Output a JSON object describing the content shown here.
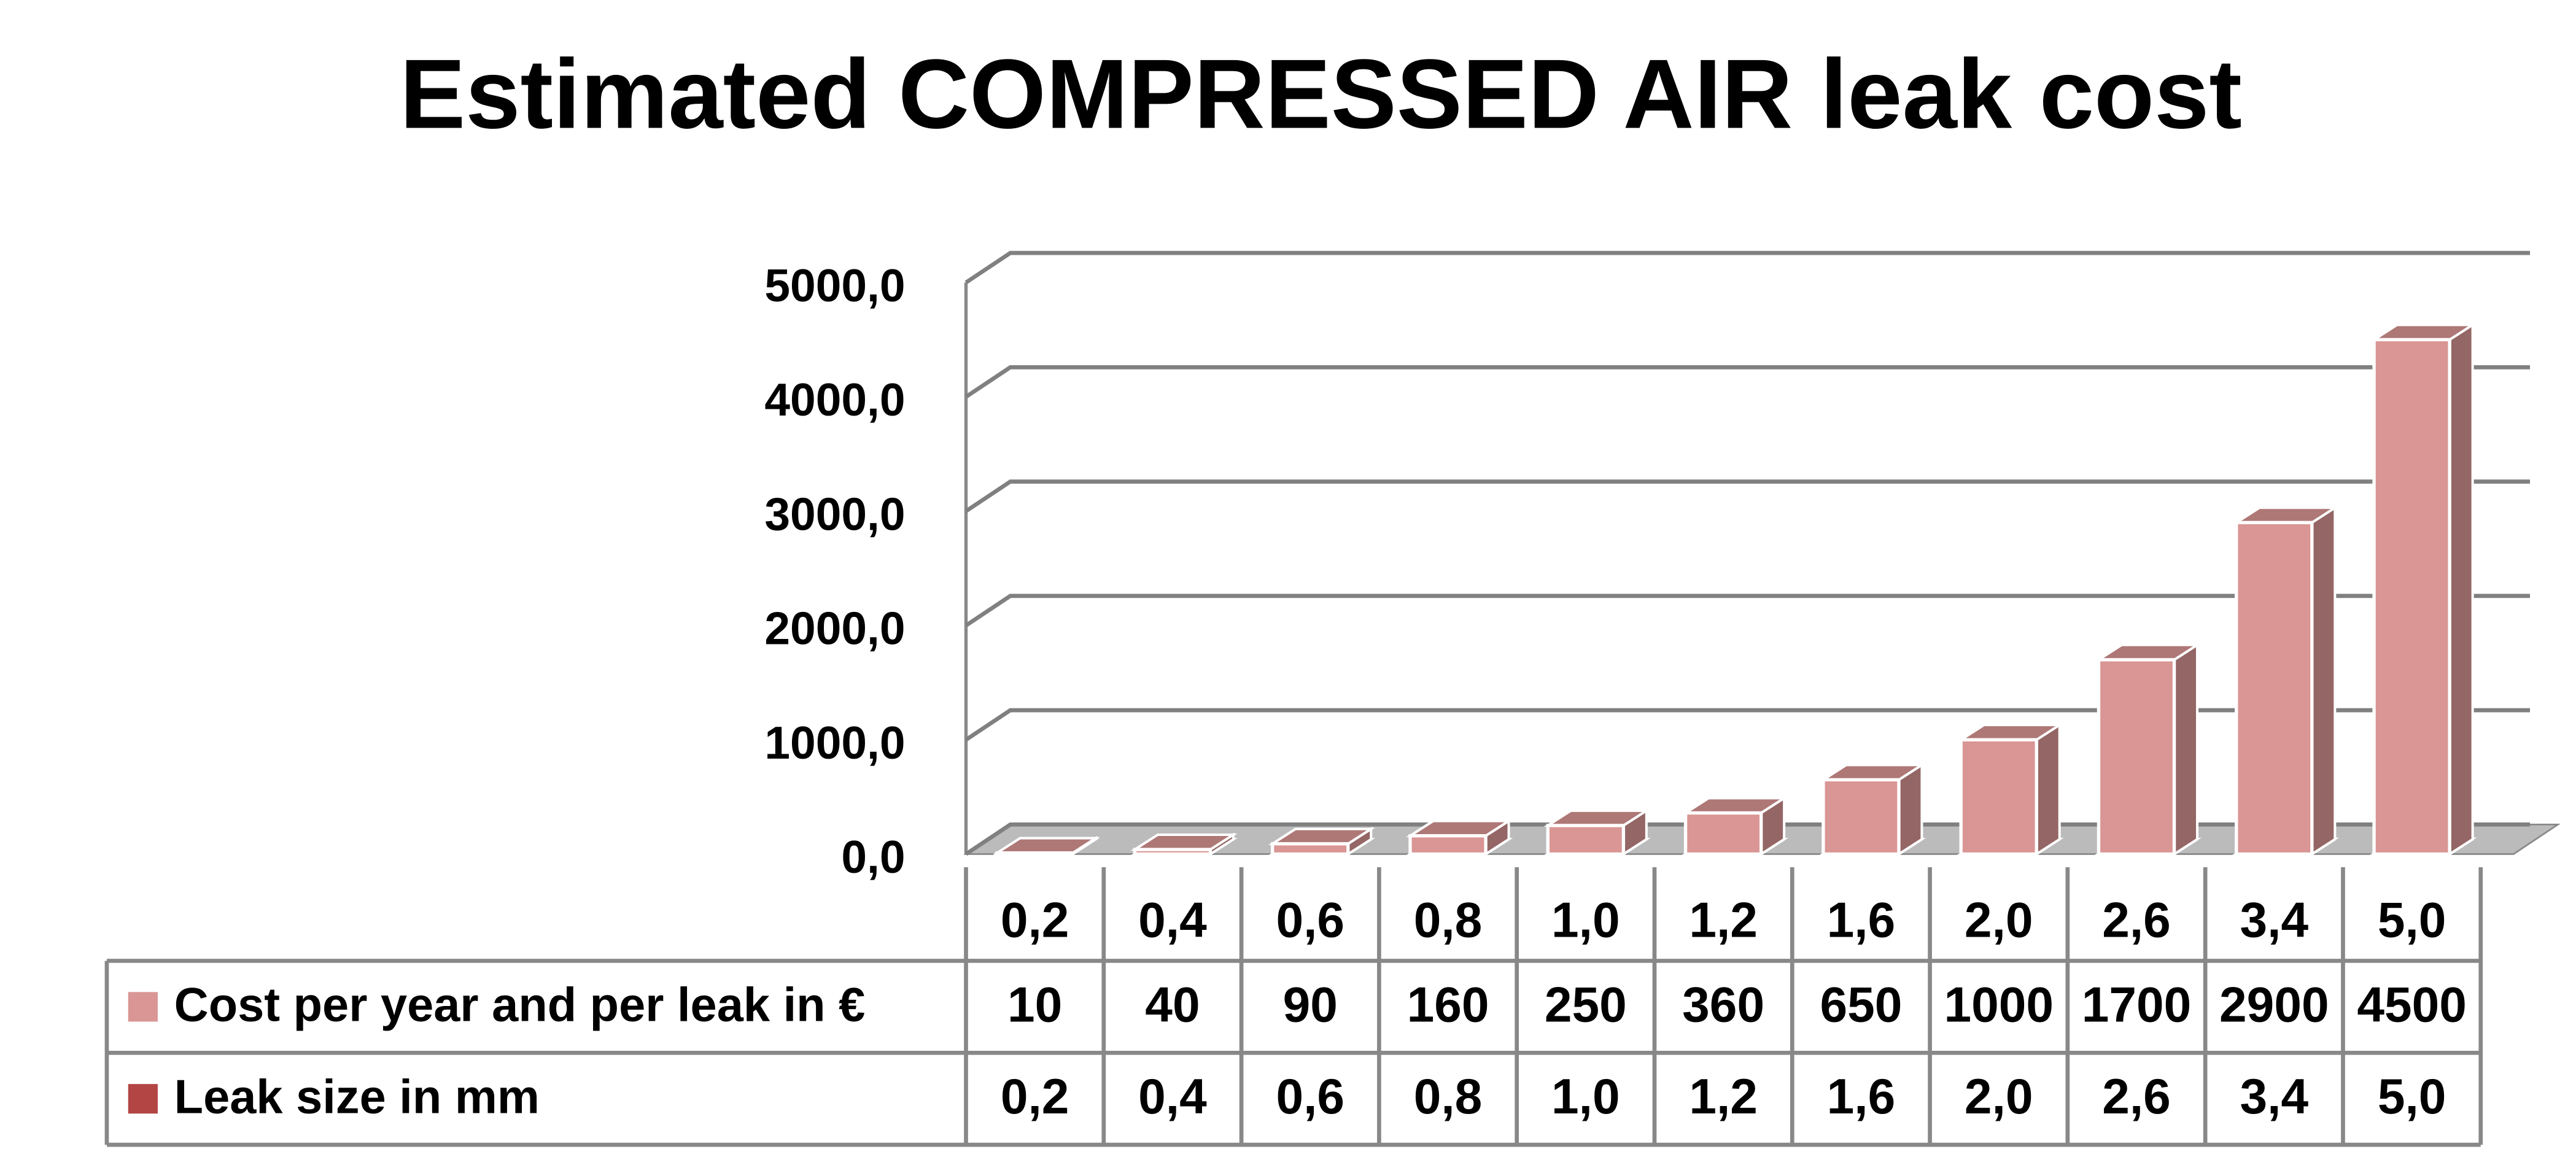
{
  "chart_data": {
    "type": "bar3d",
    "title": "Estimated COMPRESSED AIR leak cost",
    "categories": [
      "0,2",
      "0,4",
      "0,6",
      "0,8",
      "1,0",
      "1,2",
      "1,6",
      "2,0",
      "2,6",
      "3,4",
      "5,0"
    ],
    "series": [
      {
        "name": "Cost per year and per leak in €",
        "color": "#d99694",
        "values": [
          10,
          40,
          90,
          160,
          250,
          360,
          650,
          1000,
          1700,
          2900,
          4500
        ]
      },
      {
        "name": "Leak size in mm",
        "color": "#b44545",
        "values": [
          0.2,
          0.4,
          0.6,
          0.8,
          1.0,
          1.2,
          1.6,
          2.0,
          2.6,
          3.4,
          5.0
        ],
        "value_labels": [
          "0,2",
          "0,4",
          "0,6",
          "0,8",
          "1,0",
          "1,2",
          "1,6",
          "2,0",
          "2,6",
          "3,4",
          "5,0"
        ]
      }
    ],
    "ylim": [
      0,
      5000
    ],
    "yticks": [
      {
        "value": 0,
        "label": "0,0"
      },
      {
        "value": 1000,
        "label": "1000,0"
      },
      {
        "value": 2000,
        "label": "2000,0"
      },
      {
        "value": 3000,
        "label": "3000,0"
      },
      {
        "value": 4000,
        "label": "4000,0"
      },
      {
        "value": 5000,
        "label": "5000,0"
      }
    ],
    "grid": true,
    "data_table": true
  }
}
